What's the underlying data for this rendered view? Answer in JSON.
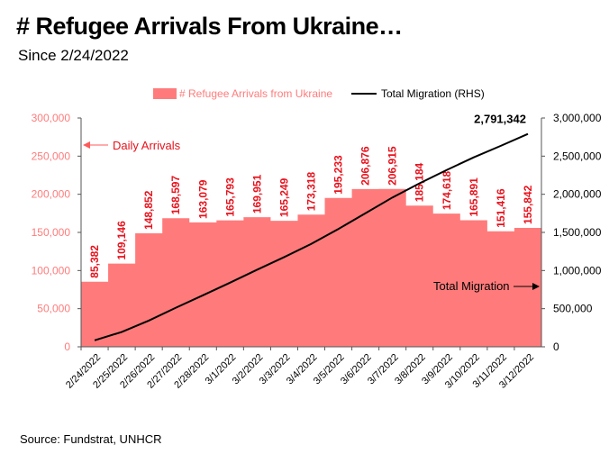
{
  "title": "# Refugee Arrivals From Ukraine…",
  "subtitle": "Since 2/24/2022",
  "source": "Source: Fundstrat, UNHCR",
  "chart_data": {
    "type": "bar",
    "categories": [
      "2/24/2022",
      "2/25/2022",
      "2/26/2022",
      "2/27/2022",
      "2/28/2022",
      "3/1/2022",
      "3/2/2022",
      "3/3/2022",
      "3/4/2022",
      "3/5/2022",
      "3/6/2022",
      "3/7/2022",
      "3/8/2022",
      "3/9/2022",
      "3/10/2022",
      "3/11/2022",
      "3/12/2022"
    ],
    "series": [
      {
        "name": "# Refugee Arrivals from Ukraine",
        "axis": "left",
        "type": "area-step",
        "color": "#ff7b7b",
        "values": [
          85382,
          109146,
          148852,
          168597,
          163079,
          165793,
          169951,
          165249,
          173318,
          195233,
          206876,
          206915,
          185184,
          174618,
          165891,
          151416,
          155842
        ],
        "labels": [
          "85,382",
          "109,146",
          "148,852",
          "168,597",
          "163,079",
          "165,793",
          "169,951",
          "165,249",
          "173,318",
          "195,233",
          "206,876",
          "206,915",
          "185,184",
          "174,618",
          "165,891",
          "151,416",
          "155,842"
        ]
      },
      {
        "name": "Total Migration (RHS)",
        "axis": "right",
        "type": "line",
        "color": "#000000",
        "values": [
          85382,
          194528,
          343380,
          511977,
          675056,
          840849,
          1010800,
          1176049,
          1349367,
          1544600,
          1751476,
          1958391,
          2143575,
          2318193,
          2484084,
          2635500,
          2791342
        ],
        "end_label": "2,791,342"
      }
    ],
    "left_axis": {
      "ylim": [
        0,
        300000
      ],
      "ticks": [
        "0",
        "50,000",
        "100,000",
        "150,000",
        "200,000",
        "250,000",
        "300,000"
      ],
      "color": "#ff7b7b"
    },
    "right_axis": {
      "ylim": [
        0,
        3000000
      ],
      "ticks": [
        "0",
        "500,000",
        "1,000,000",
        "1,500,000",
        "2,000,000",
        "2,500,000",
        "3,000,000"
      ]
    },
    "annotations": {
      "daily": "Daily Arrivals",
      "total": "Total Migration"
    },
    "legend_position": "top"
  }
}
